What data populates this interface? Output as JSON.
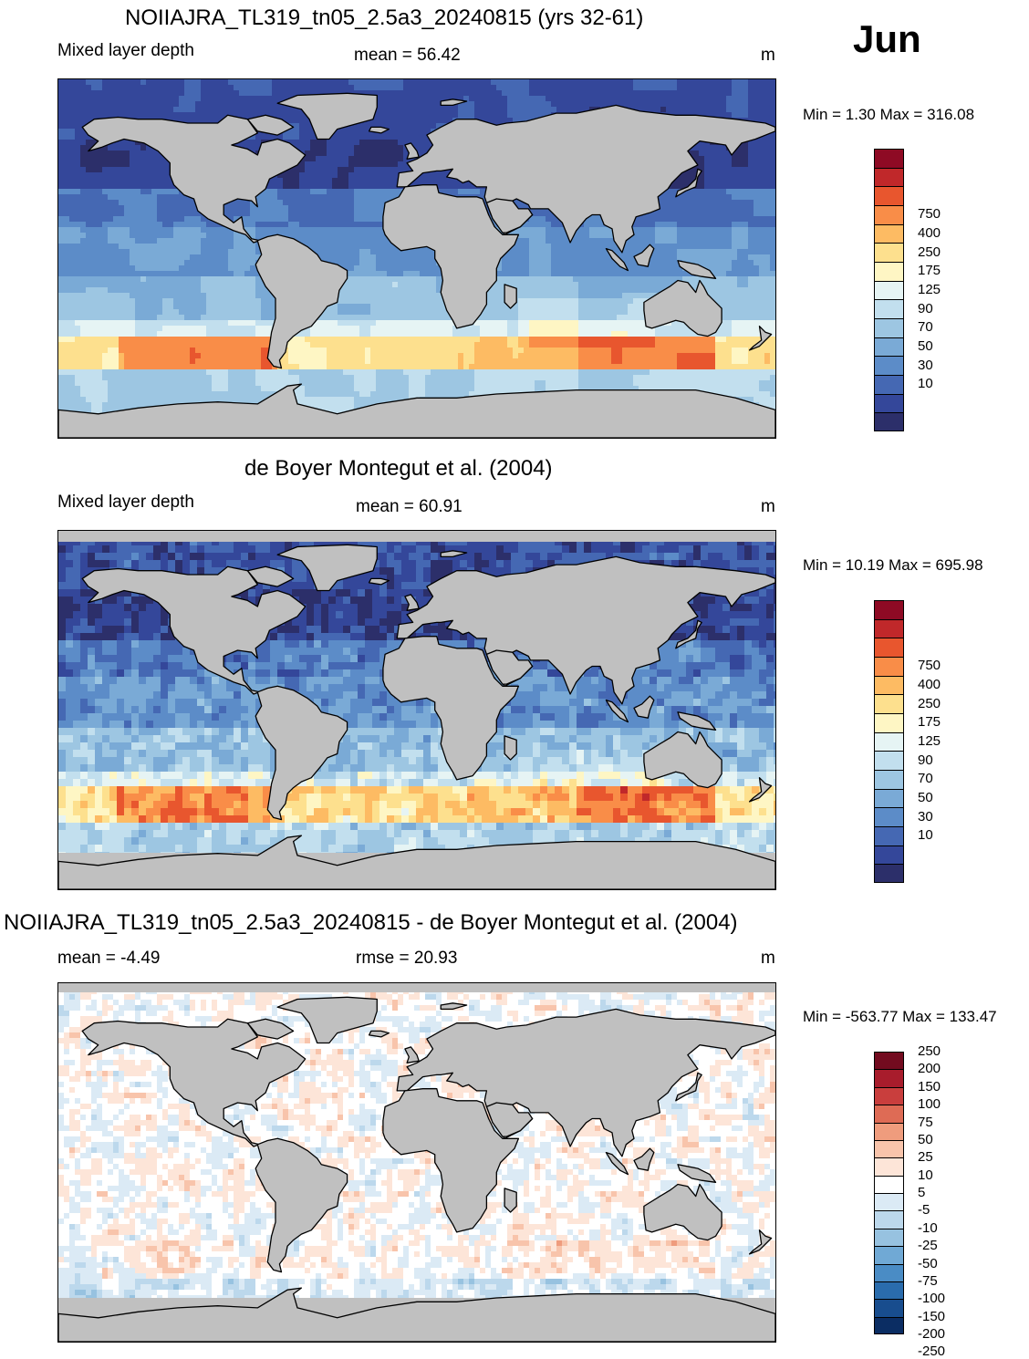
{
  "month": "Jun",
  "colors": {
    "land": "#c0c0c0",
    "coast": "#000000",
    "mld_palette": [
      "#2c2f6a",
      "#34479a",
      "#4568b3",
      "#5c8cc8",
      "#7aaad6",
      "#9dc6e2",
      "#c2dfee",
      "#e6f4f4",
      "#fef6c4",
      "#fde08e",
      "#fdbb63",
      "#f98d48",
      "#e8562e",
      "#c0282a",
      "#8e0a24"
    ],
    "diff_palette": [
      "#0b2d63",
      "#184d8e",
      "#2a6cad",
      "#4a8cc5",
      "#70a9d5",
      "#97c2e0",
      "#bcd8ec",
      "#dbeaf5",
      "#ffffff",
      "#fde5d8",
      "#f8c4ab",
      "#ef9c7d",
      "#de6b55",
      "#c93e3d",
      "#a81c2c",
      "#730b1f"
    ]
  },
  "panels": [
    {
      "title": "NOIIAJRA_TL319_tn05_2.5a3_20240815 (yrs 32-61)",
      "left_label": "Mixed layer depth",
      "center_label": "mean =  56.42",
      "units": "m",
      "minmax": "Min =   1.30 Max = 316.08",
      "field": "model",
      "colorbar": {
        "palette": "mld_palette",
        "labels": [
          "750",
          "400",
          "250",
          "175",
          "125",
          "90",
          "70",
          "50",
          "30",
          "10"
        ]
      }
    },
    {
      "title": "de Boyer Montegut et al. (2004)",
      "left_label": "Mixed layer depth",
      "center_label": "mean =  60.91",
      "units": "m",
      "minmax": "Min =  10.19 Max = 695.98",
      "field": "obs",
      "colorbar": {
        "palette": "mld_palette",
        "labels": [
          "750",
          "400",
          "250",
          "175",
          "125",
          "90",
          "70",
          "50",
          "30",
          "10"
        ]
      }
    },
    {
      "title": "NOIIAJRA_TL319_tn05_2.5a3_20240815 - de Boyer Montegut et al. (2004)",
      "left_label": "mean =  -4.49",
      "center_label": "rmse =  20.93",
      "units": "m",
      "minmax": "Min = -563.77 Max = 133.47",
      "field": "diff",
      "colorbar": {
        "palette": "diff_palette",
        "labels": [
          "250",
          "200",
          "150",
          "100",
          "75",
          "50",
          "25",
          "10",
          "5",
          "-5",
          "-10",
          "-25",
          "-50",
          "-75",
          "-100",
          "-150",
          "-200",
          "-250"
        ]
      }
    }
  ]
}
